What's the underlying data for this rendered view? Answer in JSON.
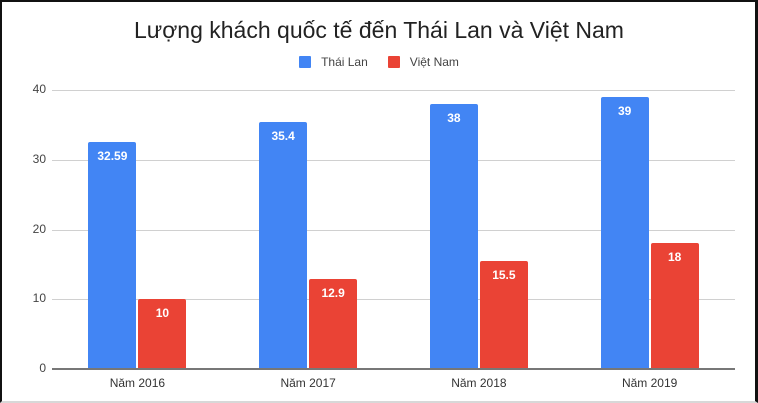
{
  "chart_data": {
    "type": "bar",
    "title": "Lượng khách quốc tế đến Thái Lan và Việt Nam",
    "xlabel": "",
    "ylabel": "",
    "categories": [
      "Năm 2016",
      "Năm 2017",
      "Năm 2018",
      "Năm 2019"
    ],
    "series": [
      {
        "name": "Thái Lan",
        "color": "#4285f4",
        "values": [
          32.59,
          35.4,
          38,
          39
        ],
        "labels": [
          "32.59",
          "35.4",
          "38",
          "39"
        ]
      },
      {
        "name": "Việt Nam",
        "color": "#ea4335",
        "values": [
          10,
          12.9,
          15.5,
          18
        ],
        "labels": [
          "10",
          "12.9",
          "15.5",
          "18"
        ]
      }
    ],
    "ylim": [
      0,
      40
    ],
    "yticks": [
      "0",
      "10",
      "20",
      "30",
      "40"
    ],
    "grid": true,
    "legend_position": "top",
    "data_labels": true
  }
}
